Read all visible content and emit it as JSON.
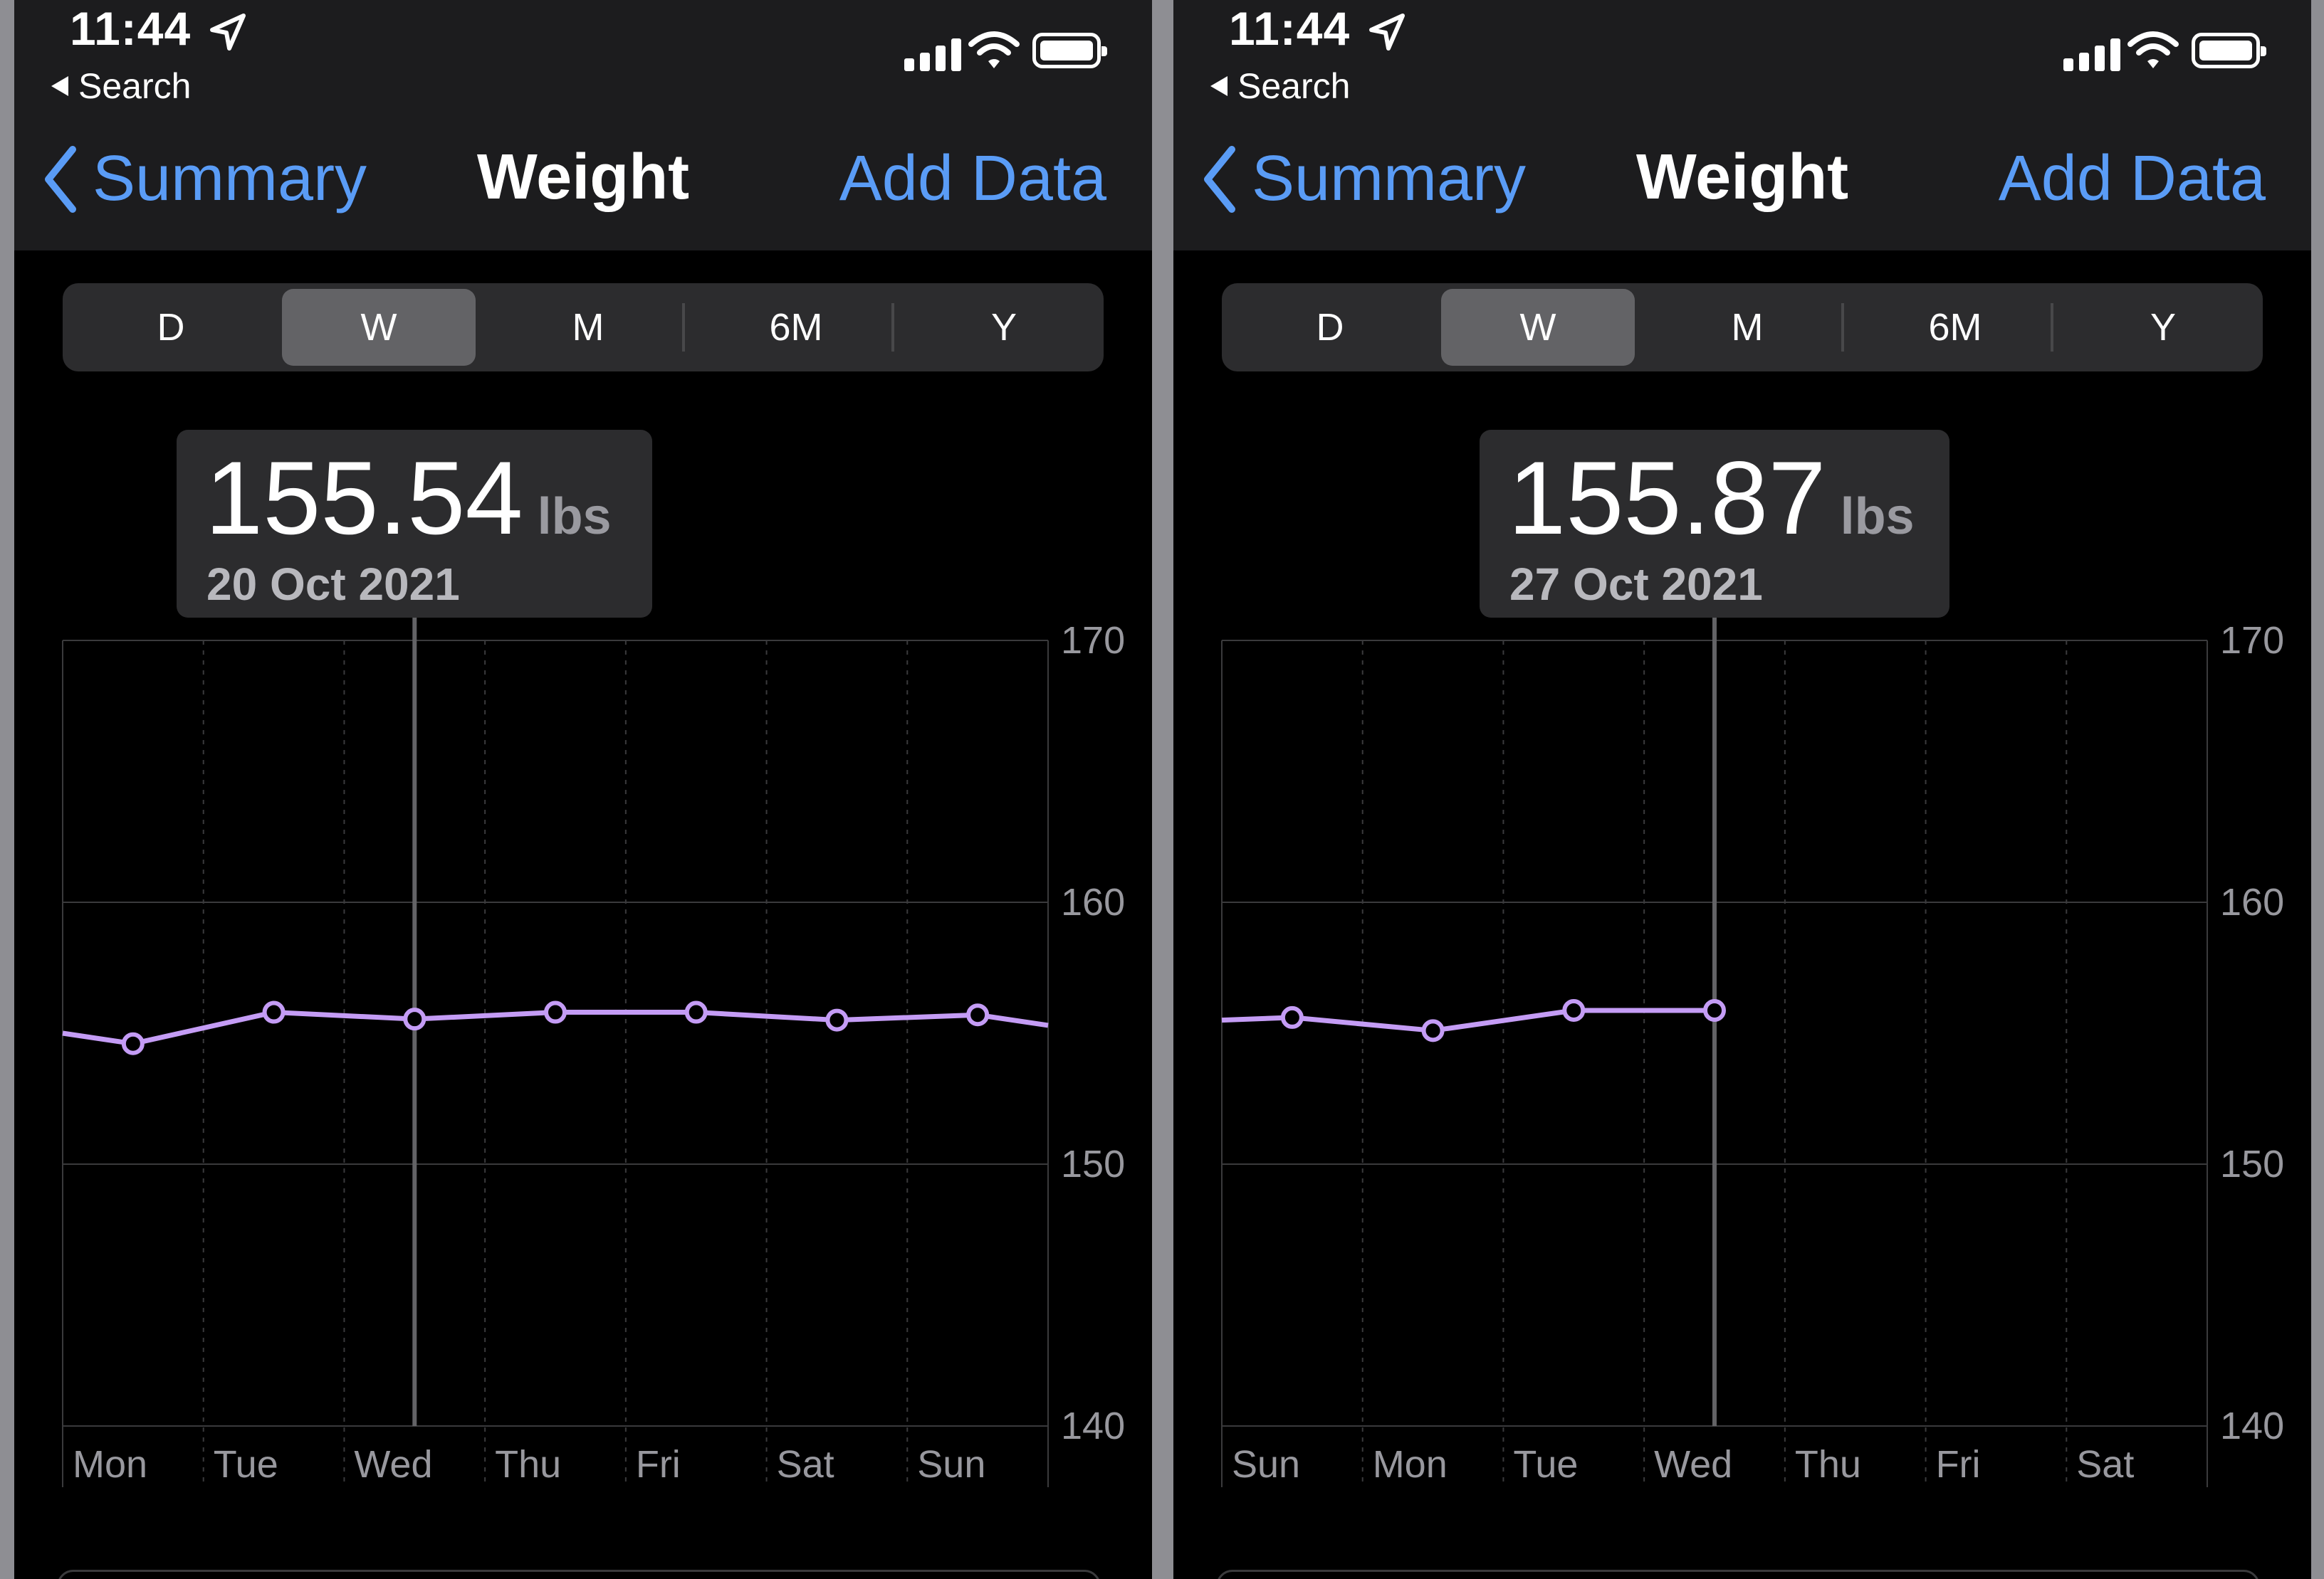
{
  "panels": [
    {
      "status": {
        "time": "11:44",
        "back_app": "Search"
      },
      "nav": {
        "back": "Summary",
        "title": "Weight",
        "action": "Add Data"
      },
      "segments": {
        "options": [
          "D",
          "W",
          "M",
          "6M",
          "Y"
        ],
        "selected": "W"
      },
      "selection": {
        "value": "155.54",
        "unit": "lbs",
        "date": "20 Oct 2021"
      },
      "chart_data": {
        "type": "line",
        "x": [
          "Mon",
          "Tue",
          "Wed",
          "Thu",
          "Fri",
          "Sat",
          "Sun"
        ],
        "values": [
          154.6,
          155.8,
          155.54,
          155.8,
          155.8,
          155.5,
          155.7
        ],
        "leading_value": 155.0,
        "trailing_value": 155.3,
        "y_ticks": [
          "170",
          "160",
          "150",
          "140"
        ],
        "ylim": [
          140,
          170
        ],
        "selected_index": 2,
        "line_color": "#c49cf5",
        "grid": true
      }
    },
    {
      "status": {
        "time": "11:44",
        "back_app": "Search"
      },
      "nav": {
        "back": "Summary",
        "title": "Weight",
        "action": "Add Data"
      },
      "segments": {
        "options": [
          "D",
          "W",
          "M",
          "6M",
          "Y"
        ],
        "selected": "W"
      },
      "selection": {
        "value": "155.87",
        "unit": "lbs",
        "date": "27 Oct 2021"
      },
      "chart_data": {
        "type": "line",
        "x": [
          "Sun",
          "Mon",
          "Tue",
          "Wed",
          "Thu",
          "Fri",
          "Sat"
        ],
        "values": [
          155.6,
          155.1,
          155.87,
          155.87,
          null,
          null,
          null
        ],
        "leading_value": 155.5,
        "trailing_value": null,
        "y_ticks": [
          "170",
          "160",
          "150",
          "140"
        ],
        "ylim": [
          140,
          170
        ],
        "selected_index": 3,
        "line_color": "#c49cf5",
        "grid": true
      }
    }
  ]
}
